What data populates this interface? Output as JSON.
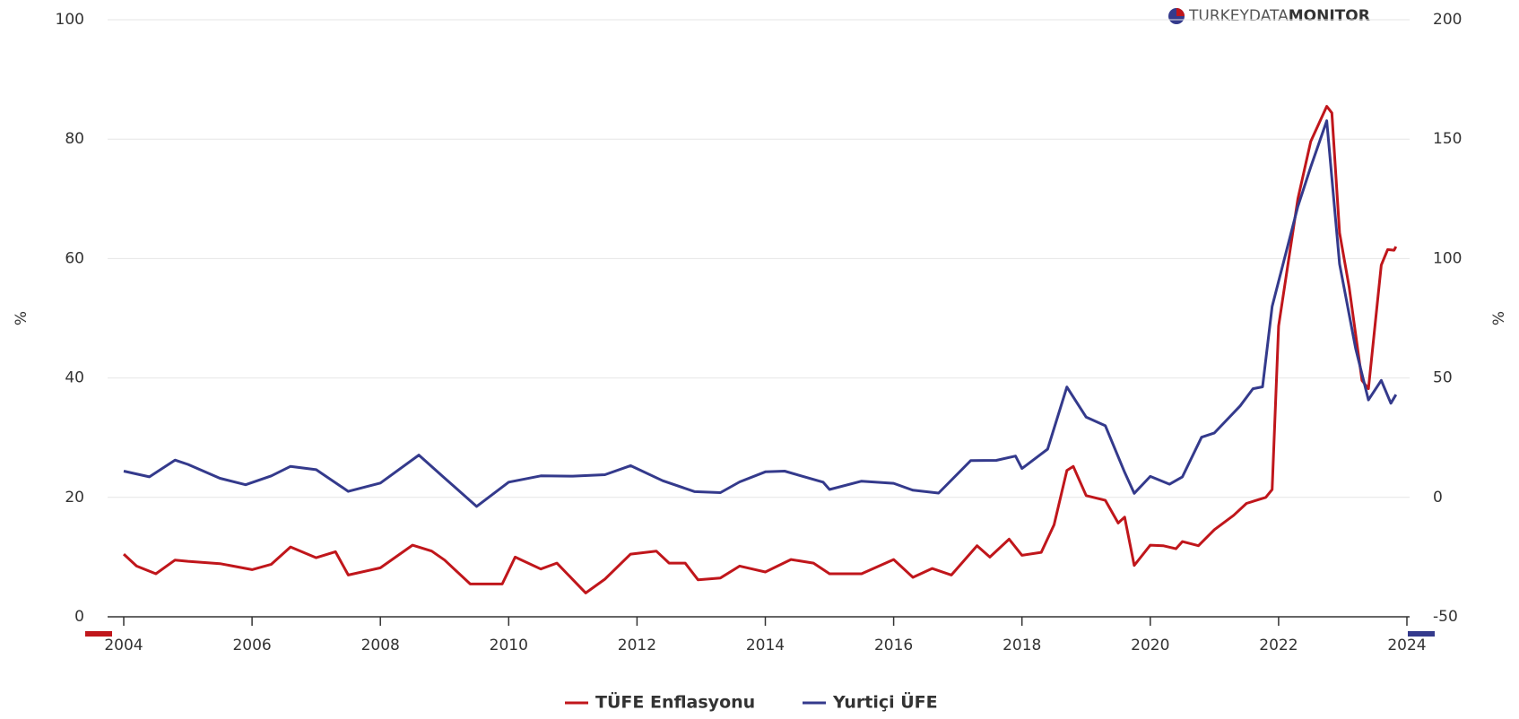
{
  "chart_data": {
    "type": "line",
    "logo": {
      "light": "TURKEYDATA",
      "bold": "MONITOR"
    },
    "ylabel": "%",
    "y2label": "%",
    "xlim": [
      2004,
      2024
    ],
    "xticks": [
      2004,
      2006,
      2008,
      2010,
      2012,
      2014,
      2016,
      2018,
      2020,
      2022,
      2024
    ],
    "ylim": [
      0,
      100
    ],
    "yticks": [
      0,
      20,
      40,
      60,
      80,
      100
    ],
    "y2lim": [
      -50,
      200
    ],
    "y2ticks": [
      -50,
      0,
      50,
      100,
      150,
      200
    ],
    "grid": true,
    "legend": "bottom",
    "series": [
      {
        "name": "TÜFE Enflasyonu",
        "color": "#c0161b",
        "axis": "y",
        "x": [
          2004.0,
          2004.2,
          2004.5,
          2004.8,
          2005.0,
          2005.5,
          2006.0,
          2006.3,
          2006.6,
          2007.0,
          2007.3,
          2007.5,
          2008.0,
          2008.5,
          2008.8,
          2009.0,
          2009.4,
          2009.9,
          2010.1,
          2010.5,
          2010.75,
          2011.2,
          2011.5,
          2011.9,
          2012.3,
          2012.5,
          2012.75,
          2012.95,
          2013.3,
          2013.6,
          2014.0,
          2014.4,
          2014.75,
          2015.0,
          2015.5,
          2016.0,
          2016.3,
          2016.6,
          2016.9,
          2017.3,
          2017.5,
          2017.8,
          2018.0,
          2018.3,
          2018.5,
          2018.7,
          2018.8,
          2019.0,
          2019.3,
          2019.5,
          2019.6,
          2019.75,
          2020.0,
          2020.2,
          2020.4,
          2020.5,
          2020.75,
          2021.0,
          2021.3,
          2021.5,
          2021.8,
          2021.9,
          2022.0,
          2022.3,
          2022.5,
          2022.75,
          2022.83,
          2022.95,
          2023.1,
          2023.3,
          2023.4,
          2023.6,
          2023.7,
          2023.8,
          2023.83
        ],
        "values": [
          10.5,
          8.5,
          7.2,
          9.5,
          9.3,
          8.9,
          7.9,
          8.8,
          11.7,
          9.9,
          10.9,
          7.0,
          8.2,
          12.0,
          11.0,
          9.5,
          5.5,
          5.5,
          10.0,
          8.0,
          9.0,
          4.0,
          6.3,
          10.5,
          11.0,
          9.0,
          9.0,
          6.2,
          6.5,
          8.5,
          7.5,
          9.6,
          9.0,
          7.2,
          7.2,
          9.6,
          6.6,
          8.1,
          7.0,
          11.9,
          10.0,
          13.0,
          10.3,
          10.8,
          15.4,
          24.5,
          25.2,
          20.3,
          19.5,
          15.7,
          16.7,
          8.6,
          12.0,
          11.9,
          11.4,
          12.6,
          11.9,
          14.6,
          17.0,
          19.0,
          20.0,
          21.3,
          48.7,
          70.0,
          79.6,
          85.5,
          84.4,
          64.3,
          55.2,
          39.6,
          38.2,
          58.9,
          61.5,
          61.4,
          62.0
        ]
      },
      {
        "name": "Yurtiçi ÜFE",
        "color": "#343a8c",
        "axis": "y2",
        "x": [
          2004.0,
          2004.4,
          2004.8,
          2005.0,
          2005.5,
          2005.9,
          2006.3,
          2006.6,
          2007.0,
          2007.5,
          2008.0,
          2008.6,
          2009.0,
          2009.5,
          2010.0,
          2010.5,
          2011.0,
          2011.5,
          2011.9,
          2012.4,
          2012.9,
          2013.3,
          2013.6,
          2014.0,
          2014.3,
          2014.9,
          2015.0,
          2015.5,
          2016.0,
          2016.3,
          2016.7,
          2017.2,
          2017.6,
          2017.9,
          2018.0,
          2018.4,
          2018.7,
          2019.0,
          2019.3,
          2019.6,
          2019.75,
          2020.0,
          2020.3,
          2020.5,
          2020.8,
          2021.0,
          2021.4,
          2021.6,
          2021.75,
          2021.9,
          2022.3,
          2022.5,
          2022.75,
          2022.95,
          2023.2,
          2023.4,
          2023.6,
          2023.75,
          2023.83
        ],
        "values": [
          11.0,
          8.6,
          15.6,
          13.8,
          8.0,
          5.3,
          9.0,
          13.0,
          11.6,
          2.5,
          6.0,
          17.7,
          8.1,
          -3.8,
          6.4,
          9.0,
          8.9,
          9.5,
          13.3,
          7.0,
          2.4,
          2.0,
          6.5,
          10.7,
          11.0,
          6.4,
          3.3,
          6.8,
          5.9,
          3.0,
          1.8,
          15.4,
          15.5,
          17.3,
          12.1,
          20.2,
          46.2,
          33.6,
          30.0,
          10.5,
          1.7,
          8.8,
          5.5,
          8.6,
          25.2,
          27.0,
          38.3,
          45.5,
          46.3,
          79.9,
          121.8,
          138.3,
          157.7,
          97.7,
          62.4,
          40.8,
          49.0,
          39.4,
          43.0
        ]
      }
    ]
  }
}
